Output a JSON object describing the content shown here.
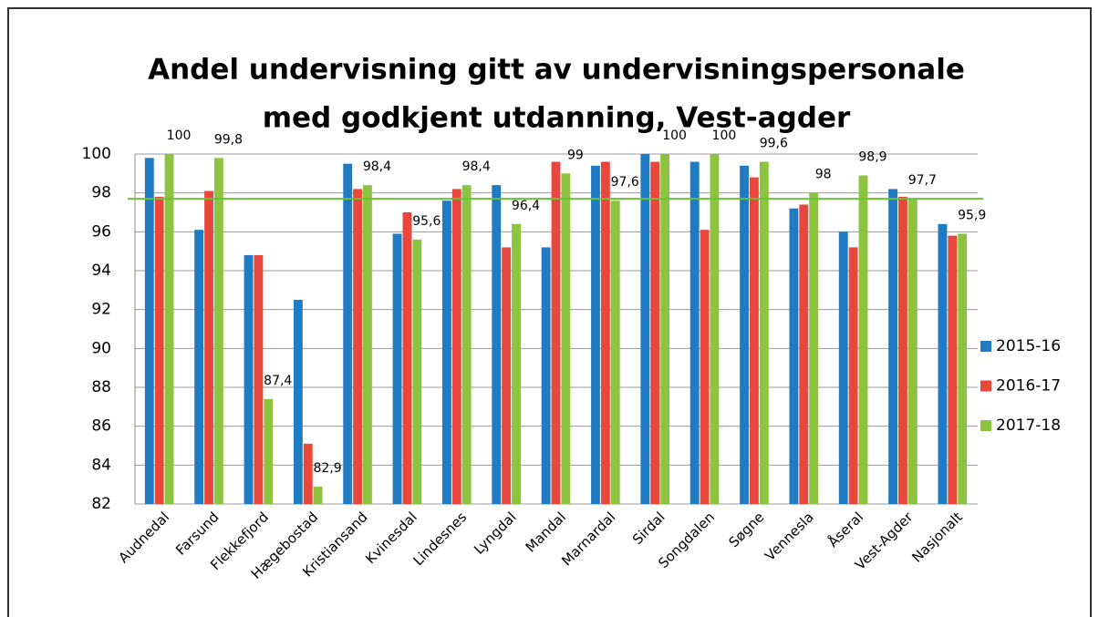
{
  "chart_data": {
    "type": "bar",
    "title": [
      "Andel undervisning gitt av undervisningspersonale",
      "med godkjent utdanning, Vest-agder"
    ],
    "categories": [
      "Audnedal",
      "Farsund",
      "Flekkefjord",
      "Hægebostad",
      "Kristiansand",
      "Kvinesdal",
      "Lindesnes",
      "Lyngdal",
      "Mandal",
      "Marnardal",
      "Sirdal",
      "Songdalen",
      "Søgne",
      "Vennesla",
      "Åseral",
      "Vest-Agder",
      "Nasjonalt"
    ],
    "series": [
      {
        "name": "2015-16",
        "color": "#1f7bc2",
        "values": [
          99.8,
          96.1,
          94.8,
          92.5,
          99.5,
          95.9,
          97.6,
          98.4,
          95.2,
          99.4,
          100,
          99.6,
          99.4,
          97.2,
          96.0,
          98.2,
          96.4
        ]
      },
      {
        "name": "2016-17",
        "color": "#e8473b",
        "values": [
          97.8,
          98.1,
          94.8,
          85.1,
          98.2,
          97.0,
          98.2,
          95.2,
          99.6,
          99.6,
          99.6,
          96.1,
          98.8,
          97.4,
          95.2,
          97.8,
          95.8
        ]
      },
      {
        "name": "2017-18",
        "color": "#8cc43f",
        "values": [
          100,
          99.8,
          87.4,
          82.9,
          98.4,
          95.6,
          98.4,
          96.4,
          99,
          97.6,
          100,
          100,
          99.6,
          98,
          98.9,
          97.7,
          95.9
        ],
        "value_labels": [
          "100",
          "99,8",
          "87,4",
          "82,9",
          "98,4",
          "95,6",
          "98,4",
          "96,4",
          "99",
          "97,6",
          "100",
          "100",
          "99,6",
          "98",
          "98,9",
          "97,7",
          "95,9"
        ]
      }
    ],
    "reference_line": {
      "value": 97.7,
      "color": "#6cbf3a"
    },
    "ylim": [
      82,
      100
    ],
    "yticks": [
      82,
      84,
      86,
      88,
      90,
      92,
      94,
      96,
      98,
      100
    ],
    "grid": true,
    "legend": "right"
  }
}
